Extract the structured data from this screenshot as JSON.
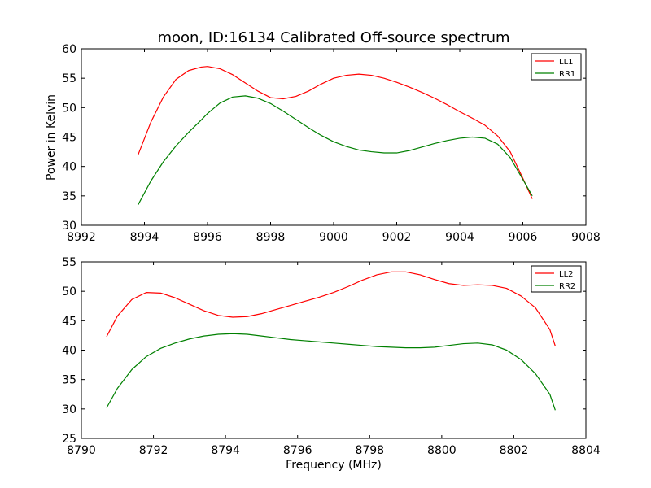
{
  "figure": {
    "title": "moon, ID:16134 Calibrated Off-source spectrum",
    "ylabel": "Power in Kelvin",
    "xlabel": "Frequency (MHz)"
  },
  "chart_data": [
    {
      "type": "line",
      "xlim": [
        8992,
        9008
      ],
      "ylim": [
        30,
        60
      ],
      "xticks": [
        8992,
        8994,
        8996,
        8998,
        9000,
        9002,
        9004,
        9006,
        9008
      ],
      "yticks": [
        30,
        35,
        40,
        45,
        50,
        55,
        60
      ],
      "grid": false,
      "legend_position": "top-right",
      "series": [
        {
          "name": "LL1",
          "color": "#ff0000",
          "x": [
            8993.8,
            8994.2,
            8994.6,
            8995.0,
            8995.4,
            8995.8,
            8996.0,
            8996.4,
            8996.8,
            8997.2,
            8997.6,
            8998.0,
            8998.4,
            8998.8,
            8999.2,
            8999.6,
            9000.0,
            9000.4,
            9000.8,
            9001.2,
            9001.6,
            9002.0,
            9002.4,
            9002.8,
            9003.2,
            9003.6,
            9004.0,
            9004.4,
            9004.8,
            9005.2,
            9005.6,
            9006.0,
            9006.3
          ],
          "y": [
            42.0,
            47.5,
            51.8,
            54.8,
            56.3,
            56.9,
            57.0,
            56.6,
            55.6,
            54.2,
            52.8,
            51.7,
            51.5,
            51.9,
            52.8,
            54.0,
            55.0,
            55.5,
            55.7,
            55.5,
            55.0,
            54.3,
            53.5,
            52.6,
            51.6,
            50.5,
            49.3,
            48.2,
            47.0,
            45.2,
            42.5,
            38.0,
            34.5
          ]
        },
        {
          "name": "RR1",
          "color": "#008000",
          "x": [
            8993.8,
            8994.2,
            8994.6,
            8995.0,
            8995.4,
            8995.8,
            8996.0,
            8996.4,
            8996.8,
            8997.2,
            8997.6,
            8998.0,
            8998.4,
            8998.8,
            8999.2,
            8999.6,
            9000.0,
            9000.4,
            9000.8,
            9001.2,
            9001.6,
            9002.0,
            9002.4,
            9002.8,
            9003.2,
            9003.6,
            9004.0,
            9004.4,
            9004.8,
            9005.2,
            9005.6,
            9006.0,
            9006.3
          ],
          "y": [
            33.5,
            37.5,
            40.8,
            43.5,
            45.8,
            47.9,
            49.0,
            50.8,
            51.8,
            52.0,
            51.6,
            50.7,
            49.4,
            48.0,
            46.6,
            45.3,
            44.2,
            43.4,
            42.8,
            42.5,
            42.3,
            42.3,
            42.7,
            43.3,
            43.9,
            44.4,
            44.8,
            45.0,
            44.8,
            43.8,
            41.5,
            37.8,
            35.0
          ]
        }
      ]
    },
    {
      "type": "line",
      "xlim": [
        8790,
        8804
      ],
      "ylim": [
        25,
        55
      ],
      "xticks": [
        8790,
        8792,
        8794,
        8796,
        8798,
        8800,
        8802,
        8804
      ],
      "yticks": [
        25,
        30,
        35,
        40,
        45,
        50,
        55
      ],
      "grid": false,
      "legend_position": "top-right",
      "series": [
        {
          "name": "LL2",
          "color": "#ff0000",
          "x": [
            8790.7,
            8791.0,
            8791.4,
            8791.8,
            8792.2,
            8792.6,
            8793.0,
            8793.4,
            8793.8,
            8794.2,
            8794.6,
            8795.0,
            8795.4,
            8795.8,
            8796.2,
            8796.6,
            8797.0,
            8797.4,
            8797.8,
            8798.2,
            8798.6,
            8799.0,
            8799.4,
            8799.8,
            8800.2,
            8800.6,
            8801.0,
            8801.4,
            8801.8,
            8802.2,
            8802.6,
            8803.0,
            8803.15
          ],
          "y": [
            42.3,
            45.8,
            48.6,
            49.8,
            49.7,
            48.9,
            47.8,
            46.7,
            45.9,
            45.6,
            45.7,
            46.2,
            46.9,
            47.6,
            48.3,
            49.0,
            49.8,
            50.8,
            51.9,
            52.8,
            53.3,
            53.3,
            52.8,
            52.0,
            51.3,
            51.0,
            51.1,
            51.0,
            50.5,
            49.2,
            47.2,
            43.5,
            40.7
          ]
        },
        {
          "name": "RR2",
          "color": "#008000",
          "x": [
            8790.7,
            8791.0,
            8791.4,
            8791.8,
            8792.2,
            8792.6,
            8793.0,
            8793.4,
            8793.8,
            8794.2,
            8794.6,
            8795.0,
            8795.4,
            8795.8,
            8796.2,
            8796.6,
            8797.0,
            8797.4,
            8797.8,
            8798.2,
            8798.6,
            8799.0,
            8799.4,
            8799.8,
            8800.2,
            8800.6,
            8801.0,
            8801.4,
            8801.8,
            8802.2,
            8802.6,
            8803.0,
            8803.15
          ],
          "y": [
            30.2,
            33.5,
            36.7,
            38.9,
            40.3,
            41.2,
            41.9,
            42.4,
            42.7,
            42.8,
            42.7,
            42.4,
            42.1,
            41.8,
            41.6,
            41.4,
            41.2,
            41.0,
            40.8,
            40.6,
            40.5,
            40.4,
            40.4,
            40.5,
            40.8,
            41.1,
            41.2,
            40.9,
            40.0,
            38.4,
            36.0,
            32.5,
            29.8
          ]
        }
      ]
    }
  ]
}
